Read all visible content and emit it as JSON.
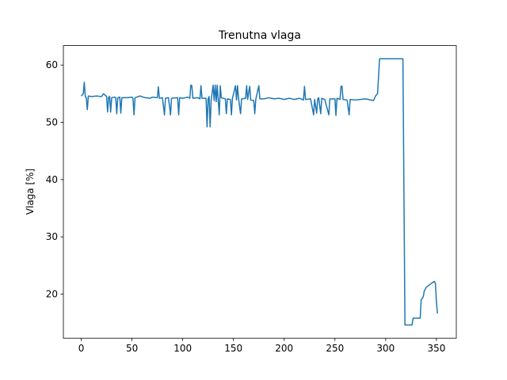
{
  "chart_data": {
    "type": "line",
    "title": "Trenutna vlaga",
    "ylabel": "Vlaga [%]",
    "xlim": [
      -17.6,
      369.6
    ],
    "ylim": [
      12.3,
      63.4
    ],
    "xticks": [
      0,
      50,
      100,
      150,
      200,
      250,
      300,
      350
    ],
    "yticks": [
      20,
      30,
      40,
      50,
      60
    ],
    "series": [
      {
        "color": "#1f77b4",
        "x": [
          0,
          2,
          3,
          4,
          5,
          6,
          7,
          10,
          15,
          20,
          22,
          25,
          26,
          27,
          28,
          29,
          30,
          33,
          34,
          35,
          36,
          38,
          39,
          40,
          45,
          50,
          51,
          52,
          53,
          58,
          63,
          68,
          70,
          75,
          76,
          77,
          80,
          82,
          83,
          86,
          88,
          89,
          95,
          96,
          97,
          100,
          105,
          107,
          108,
          109,
          110,
          115,
          117,
          118,
          119,
          123,
          124,
          125,
          126,
          127,
          128,
          130,
          131,
          132,
          133,
          134,
          135,
          136,
          137,
          138,
          142,
          143,
          144,
          147,
          148,
          149,
          152,
          153,
          154,
          155,
          157,
          158,
          162,
          163,
          164,
          166,
          167,
          170,
          171,
          172,
          175,
          176,
          180,
          185,
          190,
          195,
          200,
          205,
          210,
          215,
          219,
          220,
          221,
          226,
          229,
          230,
          232,
          233,
          234,
          236,
          237,
          240,
          244,
          245,
          250,
          251,
          252,
          255,
          256,
          257,
          258,
          262,
          264,
          265,
          270,
          275,
          280,
          288,
          290,
          292,
          294,
          300,
          310,
          317,
          319,
          326,
          327,
          330,
          334,
          335,
          337,
          338,
          340,
          343,
          346,
          348,
          349,
          350,
          351
        ],
        "values": [
          54.6,
          55,
          57,
          54.5,
          54.3,
          52.2,
          54.6,
          54.5,
          54.6,
          54.5,
          55,
          54.5,
          51.8,
          54.4,
          54.5,
          51.8,
          54.3,
          54.4,
          54.3,
          51.5,
          54.3,
          54.4,
          51.6,
          54.3,
          54.3,
          54.4,
          54.2,
          51.3,
          54.3,
          54.6,
          54.3,
          54.2,
          54.4,
          54.3,
          56.2,
          54.2,
          54.3,
          51.3,
          54.2,
          54.3,
          51.3,
          54.2,
          54.3,
          51.3,
          54.3,
          54.2,
          54.4,
          54.2,
          56.5,
          56.4,
          54.2,
          54.3,
          54.1,
          56.4,
          54.2,
          54.2,
          49.2,
          54.1,
          54.5,
          49.2,
          53.8,
          56.5,
          53.8,
          56.5,
          53.6,
          56.5,
          53.8,
          51.3,
          56.4,
          54.3,
          54.1,
          51.5,
          54.1,
          54,
          51.3,
          54.2,
          56.4,
          53.9,
          56.4,
          54.2,
          51.5,
          54.1,
          54.2,
          56.4,
          54,
          56.3,
          53.9,
          53.8,
          51.5,
          54,
          56.4,
          54.1,
          54.1,
          54.3,
          54.1,
          54.2,
          54,
          54.2,
          54,
          54.2,
          53.9,
          56.3,
          54,
          54.1,
          51.3,
          54,
          51.6,
          54.1,
          54.3,
          51.5,
          54.2,
          54,
          51.3,
          54.1,
          54.1,
          51.2,
          54.2,
          54,
          56.3,
          56.3,
          54,
          53.9,
          51.3,
          54,
          53.9,
          54,
          54.1,
          53.8,
          54.6,
          55,
          61.1,
          61.1,
          61.1,
          61.1,
          14.6,
          14.6,
          15.8,
          15.8,
          15.8,
          19,
          19.5,
          20.5,
          21.2,
          21.6,
          22,
          22.2,
          21.9,
          18.7,
          16.6
        ]
      }
    ]
  }
}
